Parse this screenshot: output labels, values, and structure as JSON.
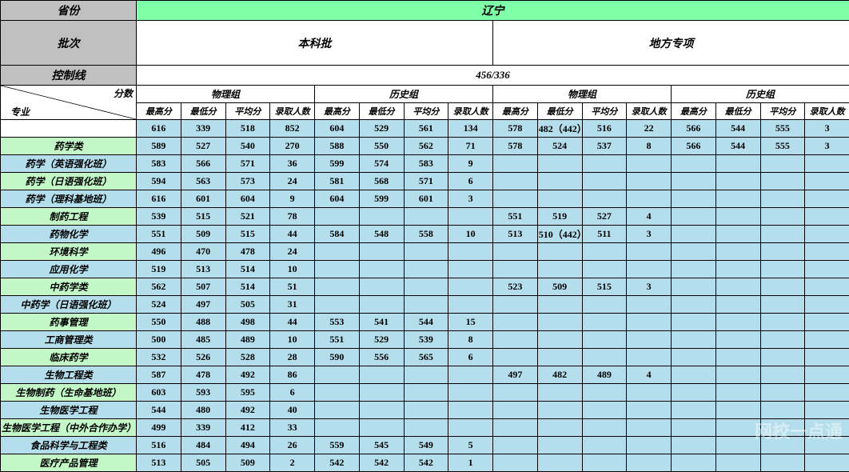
{
  "header": {
    "province_label": "省份",
    "province_value": "辽宁",
    "batch_label": "批次",
    "batch_1": "本科批",
    "batch_2": "地方专项",
    "control_label": "控制线",
    "control_value": "456/336",
    "groups": [
      "物理组",
      "历史组",
      "物理组",
      "历史组"
    ],
    "cols": [
      "最高分",
      "最低分",
      "平均分",
      "录取人数"
    ],
    "diag_top": "分数",
    "diag_bot": "专业"
  },
  "watermark": "网校一点通",
  "rows": [
    {
      "style": "white",
      "cells": [
        "",
        "616",
        "339",
        "518",
        "852",
        "604",
        "529",
        "561",
        "134",
        "578",
        "482（442）",
        "516",
        "22",
        "566",
        "544",
        "555",
        "3"
      ]
    },
    {
      "style": "green",
      "cells": [
        "药学类",
        "589",
        "527",
        "540",
        "270",
        "588",
        "550",
        "562",
        "71",
        "578",
        "524",
        "537",
        "8",
        "566",
        "544",
        "555",
        "3"
      ]
    },
    {
      "style": "blue",
      "cells": [
        "药学（英语强化班）",
        "583",
        "566",
        "571",
        "36",
        "599",
        "574",
        "583",
        "9",
        "",
        "",
        "",
        "",
        "",
        "",
        "",
        ""
      ]
    },
    {
      "style": "green",
      "cells": [
        "药学（日语强化班）",
        "594",
        "563",
        "573",
        "24",
        "581",
        "568",
        "571",
        "6",
        "",
        "",
        "",
        "",
        "",
        "",
        "",
        ""
      ]
    },
    {
      "style": "blue",
      "cells": [
        "药学（理科基地班）",
        "616",
        "601",
        "604",
        "9",
        "604",
        "599",
        "601",
        "3",
        "",
        "",
        "",
        "",
        "",
        "",
        "",
        ""
      ]
    },
    {
      "style": "green",
      "cells": [
        "制药工程",
        "539",
        "515",
        "521",
        "78",
        "",
        "",
        "",
        "",
        "551",
        "519",
        "527",
        "4",
        "",
        "",
        "",
        ""
      ]
    },
    {
      "style": "blue",
      "cells": [
        "药物化学",
        "551",
        "509",
        "515",
        "44",
        "584",
        "548",
        "558",
        "10",
        "513",
        "510（442）",
        "511",
        "3",
        "",
        "",
        "",
        ""
      ]
    },
    {
      "style": "green",
      "cells": [
        "环境科学",
        "496",
        "470",
        "478",
        "24",
        "",
        "",
        "",
        "",
        "",
        "",
        "",
        "",
        "",
        "",
        "",
        ""
      ]
    },
    {
      "style": "blue",
      "cells": [
        "应用化学",
        "519",
        "513",
        "514",
        "10",
        "",
        "",
        "",
        "",
        "",
        "",
        "",
        "",
        "",
        "",
        "",
        ""
      ]
    },
    {
      "style": "green",
      "cells": [
        "中药学类",
        "562",
        "507",
        "514",
        "51",
        "",
        "",
        "",
        "",
        "523",
        "509",
        "515",
        "3",
        "",
        "",
        "",
        ""
      ]
    },
    {
      "style": "blue",
      "cells": [
        "中药学（日语强化班）",
        "524",
        "497",
        "505",
        "31",
        "",
        "",
        "",
        "",
        "",
        "",
        "",
        "",
        "",
        "",
        "",
        ""
      ]
    },
    {
      "style": "green",
      "cells": [
        "药事管理",
        "550",
        "488",
        "498",
        "44",
        "553",
        "541",
        "544",
        "15",
        "",
        "",
        "",
        "",
        "",
        "",
        "",
        ""
      ]
    },
    {
      "style": "blue",
      "cells": [
        "工商管理类",
        "500",
        "485",
        "489",
        "10",
        "551",
        "529",
        "539",
        "8",
        "",
        "",
        "",
        "",
        "",
        "",
        "",
        ""
      ]
    },
    {
      "style": "green",
      "cells": [
        "临床药学",
        "532",
        "526",
        "528",
        "28",
        "590",
        "556",
        "565",
        "6",
        "",
        "",
        "",
        "",
        "",
        "",
        "",
        ""
      ]
    },
    {
      "style": "blue",
      "cells": [
        "生物工程类",
        "587",
        "478",
        "492",
        "86",
        "",
        "",
        "",
        "",
        "497",
        "482",
        "489",
        "4",
        "",
        "",
        "",
        ""
      ]
    },
    {
      "style": "green",
      "cells": [
        "生物制药（生命基地班）",
        "603",
        "593",
        "595",
        "6",
        "",
        "",
        "",
        "",
        "",
        "",
        "",
        "",
        "",
        "",
        "",
        ""
      ]
    },
    {
      "style": "blue",
      "cells": [
        "生物医学工程",
        "544",
        "480",
        "492",
        "40",
        "",
        "",
        "",
        "",
        "",
        "",
        "",
        "",
        "",
        "",
        "",
        ""
      ]
    },
    {
      "style": "green",
      "cells": [
        "生物医学工程（中外合作办学）",
        "499",
        "339",
        "412",
        "33",
        "",
        "",
        "",
        "",
        "",
        "",
        "",
        "",
        "",
        "",
        "",
        ""
      ]
    },
    {
      "style": "blue",
      "cells": [
        "食品科学与工程类",
        "516",
        "484",
        "494",
        "26",
        "559",
        "545",
        "549",
        "5",
        "",
        "",
        "",
        "",
        "",
        "",
        "",
        ""
      ]
    },
    {
      "style": "green",
      "cells": [
        "医疗产品管理",
        "513",
        "505",
        "509",
        "2",
        "542",
        "542",
        "542",
        "1",
        "",
        "",
        "",
        "",
        "",
        "",
        "",
        ""
      ]
    }
  ]
}
